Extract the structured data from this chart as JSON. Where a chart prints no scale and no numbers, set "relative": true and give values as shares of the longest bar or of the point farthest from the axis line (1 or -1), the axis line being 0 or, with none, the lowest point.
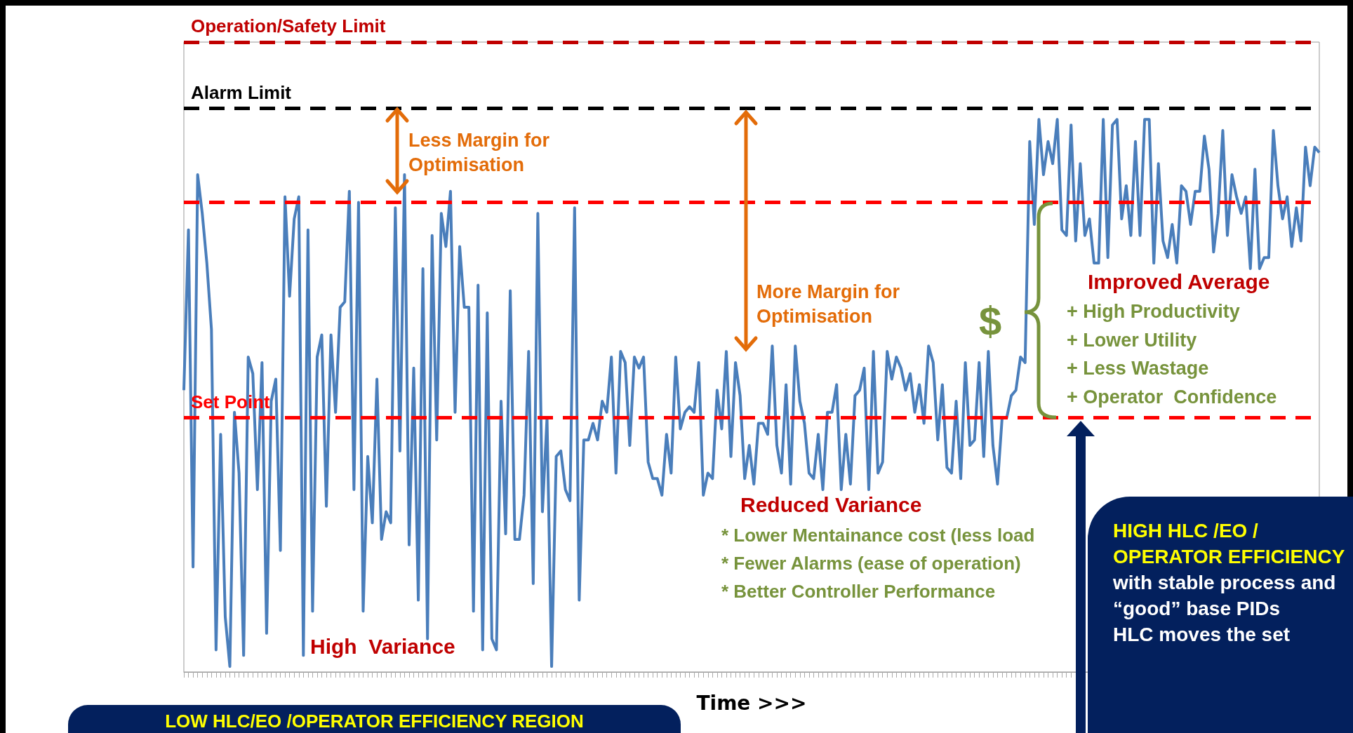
{
  "chart_data": {
    "type": "line",
    "relative": true,
    "xlabel": "Time >>>",
    "marker": "none",
    "categories": [
      null,
      null,
      null,
      null,
      null,
      null,
      null,
      null,
      null,
      null,
      null,
      null,
      null,
      null,
      null,
      null,
      null,
      null,
      null,
      null,
      null,
      null,
      null,
      null,
      null,
      null,
      null,
      null,
      null,
      null,
      null,
      null,
      null,
      null,
      null,
      null,
      null,
      null,
      null,
      null,
      null,
      null,
      null,
      null,
      null,
      null,
      null,
      null,
      null,
      null,
      null,
      null,
      null,
      null,
      null,
      null,
      null,
      null,
      null,
      null,
      null,
      null,
      null,
      null,
      null,
      null,
      null,
      null,
      null,
      null,
      null,
      null,
      null,
      null,
      null,
      null,
      null,
      null,
      null,
      null,
      null,
      null,
      null,
      null,
      null,
      null,
      null,
      null,
      null,
      null,
      null,
      null,
      null,
      null,
      null,
      null,
      null,
      null,
      null,
      null,
      null,
      null,
      null,
      null,
      null,
      null,
      null,
      null,
      null,
      null,
      null,
      null,
      null,
      null,
      null,
      null,
      null,
      null,
      null,
      null,
      null,
      null,
      null,
      null,
      null,
      null,
      null,
      null,
      null,
      null,
      null,
      null,
      null,
      null,
      null,
      null,
      null,
      null,
      null,
      null,
      null,
      null,
      null,
      null,
      null,
      null,
      null,
      null,
      null,
      null,
      null,
      null,
      null,
      null,
      null,
      null,
      null,
      null,
      null,
      null,
      null,
      null,
      null,
      null,
      null,
      null,
      null,
      null,
      null,
      null,
      null,
      null,
      null,
      null,
      null,
      null,
      null,
      null,
      null,
      null,
      null,
      null,
      null,
      null,
      null,
      null,
      null,
      null,
      null,
      null,
      null,
      null,
      null,
      null,
      null,
      null,
      null,
      null,
      null,
      null,
      null,
      null,
      null,
      null,
      null,
      null,
      null,
      null,
      null,
      null,
      null,
      null,
      null,
      null,
      null,
      null,
      null,
      null,
      null,
      null,
      null,
      null,
      null,
      null,
      null,
      null,
      null,
      null,
      null,
      null,
      null,
      null,
      null,
      null,
      null,
      null,
      null,
      null,
      null,
      null,
      null,
      null,
      null,
      null,
      null,
      null,
      null,
      null
    ],
    "series": [
      {
        "color": "#4a7ebb",
        "values": [
          0.51,
          0.8,
          0.19,
          0.9,
          0.83,
          0.74,
          0.62,
          0.04,
          0.43,
          0.1,
          0.01,
          0.47,
          0.36,
          0.03,
          0.57,
          0.54,
          0.33,
          0.56,
          0.07,
          0.49,
          0.53,
          0.22,
          0.86,
          0.68,
          0.82,
          0.86,
          0.03,
          0.8,
          0.11,
          0.57,
          0.61,
          0.3,
          0.61,
          0.47,
          0.66,
          0.67,
          0.87,
          0.33,
          0.85,
          0.11,
          0.39,
          0.27,
          0.53,
          0.24,
          0.29,
          0.27,
          0.84,
          0.4,
          0.9,
          0.23,
          0.55,
          0.13,
          0.73,
          0.06,
          0.79,
          0.42,
          0.83,
          0.77,
          0.87,
          0.47,
          0.77,
          0.66,
          0.66,
          0.11,
          0.7,
          0.04,
          0.65,
          0.06,
          0.04,
          0.49,
          0.25,
          0.69,
          0.24,
          0.24,
          0.32,
          0.58,
          0.16,
          0.83,
          0.29,
          0.46,
          0.01,
          0.39,
          0.4,
          0.33,
          0.31,
          0.84,
          0.13,
          0.42,
          0.42,
          0.45,
          0.42,
          0.49,
          0.47,
          0.57,
          0.36,
          0.58,
          0.56,
          0.41,
          0.57,
          0.55,
          0.57,
          0.38,
          0.35,
          0.35,
          0.32,
          0.43,
          0.36,
          0.57,
          0.44,
          0.47,
          0.48,
          0.47,
          0.56,
          0.32,
          0.36,
          0.35,
          0.51,
          0.44,
          0.58,
          0.39,
          0.56,
          0.5,
          0.35,
          0.41,
          0.34,
          0.45,
          0.45,
          0.43,
          0.59,
          0.41,
          0.36,
          0.52,
          0.34,
          0.59,
          0.49,
          0.45,
          0.36,
          0.35,
          0.43,
          0.33,
          0.47,
          0.47,
          0.52,
          0.33,
          0.43,
          0.34,
          0.5,
          0.51,
          0.55,
          0.33,
          0.58,
          0.36,
          0.38,
          0.58,
          0.53,
          0.57,
          0.55,
          0.51,
          0.54,
          0.47,
          0.52,
          0.45,
          0.59,
          0.56,
          0.42,
          0.52,
          0.37,
          0.36,
          0.49,
          0.35,
          0.56,
          0.41,
          0.42,
          0.56,
          0.39,
          0.58,
          0.41,
          0.34,
          0.46,
          0.46,
          0.5,
          0.51,
          0.57,
          0.56,
          0.96,
          0.81,
          1.0,
          0.9,
          0.96,
          0.92,
          1.0,
          0.8,
          0.79,
          0.99,
          0.78,
          0.92,
          0.79,
          0.82,
          0.74,
          0.74,
          1.0,
          0.75,
          0.99,
          1.0,
          0.82,
          0.88,
          0.79,
          0.96,
          0.79,
          1.0,
          1.0,
          0.74,
          0.92,
          0.78,
          0.75,
          0.81,
          0.74,
          0.88,
          0.87,
          0.81,
          0.87,
          0.87,
          0.97,
          0.91,
          0.76,
          0.83,
          0.98,
          0.79,
          0.9,
          0.86,
          0.83,
          0.86,
          0.73,
          0.91,
          0.73,
          0.75,
          0.75,
          0.98,
          0.88,
          0.82,
          0.86,
          0.77,
          0.84,
          0.78,
          0.95,
          0.88,
          0.95,
          0.94
        ]
      }
    ],
    "ref_lines": [
      {
        "axis": "y",
        "value": 1.14,
        "label": "Operation/Safety Limit",
        "color": "#c00000",
        "line_style": "dashed"
      },
      {
        "axis": "y",
        "value": 1.02,
        "label": "Alarm Limit",
        "color": "#000000",
        "line_style": "dashed"
      },
      {
        "axis": "y",
        "value": 0.46,
        "label": "Set Point",
        "color": "#ff0000",
        "line_style": "dashed"
      },
      {
        "axis": "y",
        "value": 0.85,
        "color": "#ff0000",
        "line_style": "dashed"
      }
    ],
    "annotations": [
      "Less Margin for Optimisation",
      "More Margin for Optimisation",
      "$",
      "Improved Average",
      "+ High Productivity",
      "+ Lower Utility",
      "+ Less Wastage",
      "+ Operator  Confidence",
      "Reduced Variance",
      "* Lower Mentainance cost (less load",
      "* Fewer Alarms (ease of operation)",
      "* Better Controller Performance",
      "High  Variance",
      "LOW HLC/EO /OPERATOR EFFICIENCY REGION",
      "HIGH HLC /EO / OPERATOR EFFICIENCY",
      "with stable process and “good” base PIDs",
      "HLC moves the set"
    ]
  }
}
